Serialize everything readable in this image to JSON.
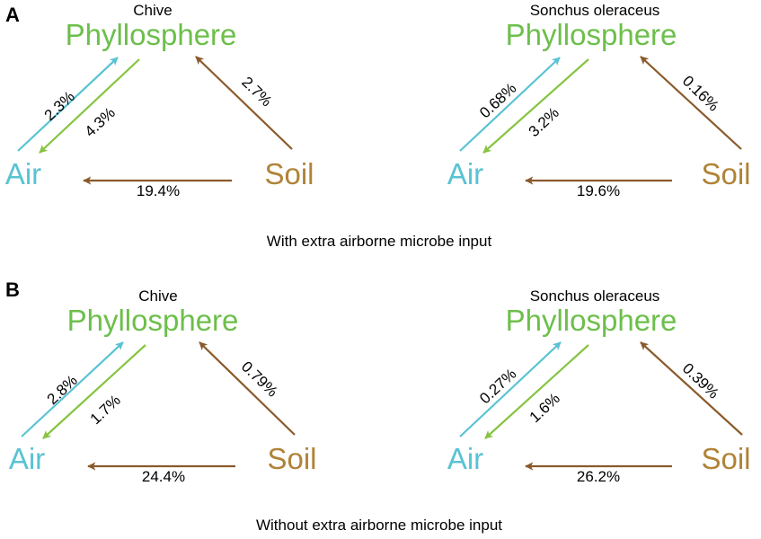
{
  "colors": {
    "phyllosphere": "#6cbf4a",
    "air": "#59c3d3",
    "soil": "#b08337",
    "soil_arrow": "#8b5a2b",
    "air_arrow": "#59c3d3",
    "phyllo_arrow": "#86c440"
  },
  "panels": [
    {
      "letter": "A",
      "caption": "With extra airborne microbe input",
      "diagrams": [
        {
          "species": "Chive",
          "phyllosphere": "Phyllosphere",
          "air": "Air",
          "soil": "Soil",
          "air_to_phyllosphere": "2.3%",
          "phyllosphere_to_air": "4.3%",
          "soil_to_phyllosphere": "2.7%",
          "soil_to_air": "19.4%"
        },
        {
          "species": "Sonchus oleraceus",
          "phyllosphere": "Phyllosphere",
          "air": "Air",
          "soil": "Soil",
          "air_to_phyllosphere": "0.68%",
          "phyllosphere_to_air": "3.2%",
          "soil_to_phyllosphere": "0.16%",
          "soil_to_air": "19.6%"
        }
      ]
    },
    {
      "letter": "B",
      "caption": "Without extra airborne microbe input",
      "diagrams": [
        {
          "species": "Chive",
          "phyllosphere": "Phyllosphere",
          "air": "Air",
          "soil": "Soil",
          "air_to_phyllosphere": "2.8%",
          "phyllosphere_to_air": "1.7%",
          "soil_to_phyllosphere": "0.79%",
          "soil_to_air": "24.4%"
        },
        {
          "species": "Sonchus oleraceus",
          "phyllosphere": "Phyllosphere",
          "air": "Air",
          "soil": "Soil",
          "air_to_phyllosphere": "0.27%",
          "phyllosphere_to_air": "1.6%",
          "soil_to_phyllosphere": "0.39%",
          "soil_to_air": "26.2%"
        }
      ]
    }
  ]
}
